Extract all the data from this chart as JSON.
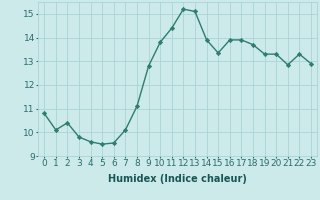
{
  "x": [
    0,
    1,
    2,
    3,
    4,
    5,
    6,
    7,
    8,
    9,
    10,
    11,
    12,
    13,
    14,
    15,
    16,
    17,
    18,
    19,
    20,
    21,
    22,
    23
  ],
  "y": [
    10.8,
    10.1,
    10.4,
    9.8,
    9.6,
    9.5,
    9.55,
    10.1,
    11.1,
    12.8,
    13.8,
    14.4,
    15.2,
    15.1,
    13.9,
    13.35,
    13.9,
    13.9,
    13.7,
    13.3,
    13.3,
    12.85,
    13.3,
    12.9
  ],
  "line_color": "#2e7d6e",
  "marker": "D",
  "markersize": 2.2,
  "linewidth": 1.0,
  "bg_color": "#cceaea",
  "grid_color": "#aad4d4",
  "xlabel": "Humidex (Indice chaleur)",
  "xlabel_fontsize": 7.0,
  "tick_fontsize": 6.5,
  "ylim": [
    9,
    15.5
  ],
  "xlim": [
    -0.5,
    23.5
  ],
  "yticks": [
    9,
    10,
    11,
    12,
    13,
    14,
    15
  ],
  "xticks": [
    0,
    1,
    2,
    3,
    4,
    5,
    6,
    7,
    8,
    9,
    10,
    11,
    12,
    13,
    14,
    15,
    16,
    17,
    18,
    19,
    20,
    21,
    22,
    23
  ],
  "tick_color": "#2e6b6b",
  "label_color": "#1a5555"
}
